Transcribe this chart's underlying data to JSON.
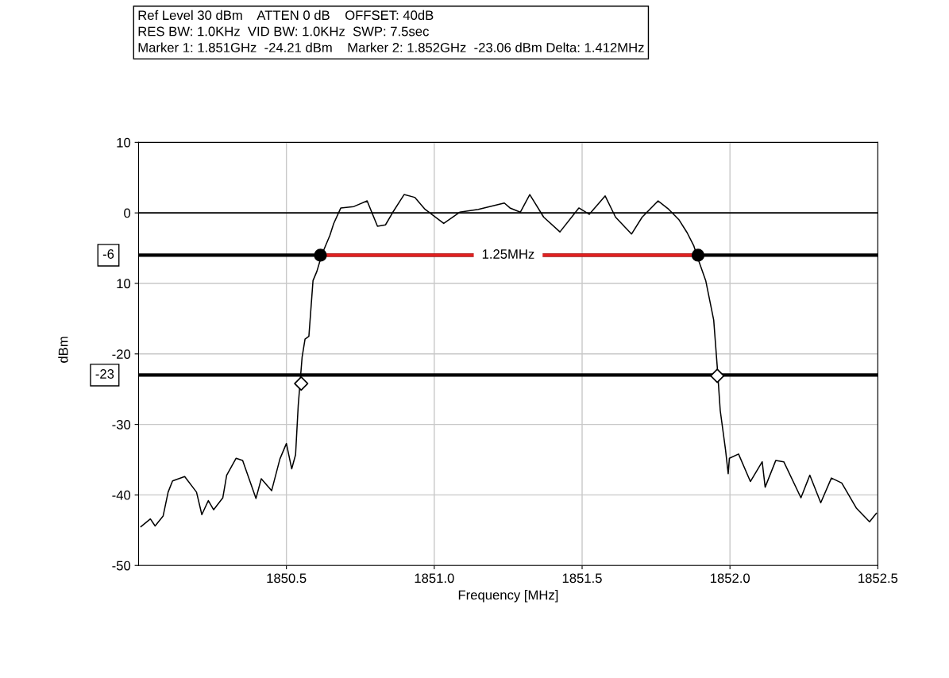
{
  "chart_data": {
    "type": "line",
    "title": "Ref Level 30 dBm    ATTEN 0 dB    OFFSET: 40dB\nRES BW: 1.0KHz  VID BW: 1.0KHz  SWP: 7.5sec\nMarker 1: 1.851GHz  -24.21 dBm    Marker 2: 1.852GHz  -23.06 dBm Delta: 1.412MHz",
    "xlabel": "Frequency [MHz]",
    "ylabel": "dBm",
    "xlim": [
      1850.0,
      1852.5
    ],
    "ylim": [
      -50,
      10
    ],
    "xticks": [
      {
        "value": 1850.5,
        "label": "1850.5"
      },
      {
        "value": 1851.0,
        "label": "1851.0"
      },
      {
        "value": 1851.5,
        "label": "1851.5"
      },
      {
        "value": 1852.0,
        "label": "1852.0"
      },
      {
        "value": 1852.5,
        "label": "1852.5"
      }
    ],
    "yticks": [
      10,
      0,
      {
        "value": -10,
        "label": "10"
      },
      -20,
      -30,
      -40,
      -50
    ],
    "grid": true,
    "legend": false,
    "ref_lines": [
      {
        "axis": "y",
        "value": 0,
        "color": "#000000"
      },
      {
        "axis": "y",
        "value": -6,
        "label": "-6",
        "color": "#000000"
      },
      {
        "axis": "y",
        "value": -23,
        "label": "-23",
        "color": "#000000"
      }
    ],
    "annotations": [
      {
        "text": "1.25MHz",
        "x": 1851.25,
        "y": -6
      }
    ],
    "series": [
      {
        "color": "#000000",
        "marker": "none",
        "x": [
          1850.008,
          1850.04,
          1850.056,
          1850.083,
          1850.1,
          1850.115,
          1850.156,
          1850.196,
          1850.214,
          1850.236,
          1850.254,
          1850.285,
          1850.298,
          1850.33,
          1850.352,
          1850.397,
          1850.415,
          1850.45,
          1850.478,
          1850.5,
          1850.518,
          1850.531,
          1850.54,
          1850.553,
          1850.563,
          1850.576,
          1850.59,
          1850.603,
          1850.62,
          1850.647,
          1850.66,
          1850.684,
          1850.728,
          1850.773,
          1850.808,
          1850.835,
          1850.86,
          1850.898,
          1850.934,
          1850.969,
          1851.032,
          1851.086,
          1851.149,
          1851.237,
          1851.256,
          1851.291,
          1851.323,
          1851.37,
          1851.425,
          1851.489,
          1851.524,
          1851.578,
          1851.613,
          1851.667,
          1851.703,
          1851.757,
          1851.793,
          1851.828,
          1851.855,
          1851.878,
          1851.891,
          1851.918,
          1851.945,
          1851.958,
          1851.967,
          1851.985,
          1851.994,
          1851.998,
          1852.029,
          1852.069,
          1852.109,
          1852.119,
          1852.155,
          1852.182,
          1852.24,
          1852.27,
          1852.307,
          1852.343,
          1852.378,
          1852.428,
          1852.472,
          1852.495
        ],
        "values": [
          -44.5,
          -43.4,
          -44.4,
          -43.0,
          -39.6,
          -38.0,
          -37.4,
          -39.6,
          -42.8,
          -40.8,
          -42.1,
          -40.4,
          -37.2,
          -34.8,
          -35.1,
          -40.5,
          -37.7,
          -39.4,
          -34.9,
          -32.7,
          -36.3,
          -34.3,
          -27.3,
          -20.5,
          -17.9,
          -17.5,
          -9.6,
          -8.3,
          -5.9,
          -3.2,
          -1.5,
          0.7,
          0.9,
          1.7,
          -1.9,
          -1.7,
          0.1,
          2.6,
          2.2,
          0.5,
          -1.5,
          0.1,
          0.5,
          1.4,
          0.7,
          0.1,
          2.6,
          -0.6,
          -2.7,
          0.7,
          -0.2,
          2.4,
          -0.6,
          -3.0,
          -0.6,
          1.7,
          0.5,
          -1.0,
          -2.8,
          -4.7,
          -6.4,
          -9.6,
          -15.2,
          -22.4,
          -28.0,
          -33.6,
          -37.0,
          -34.8,
          -34.2,
          -38.1,
          -35.3,
          -38.9,
          -35.1,
          -35.3,
          -40.4,
          -37.2,
          -41.1,
          -37.6,
          -38.3,
          -41.9,
          -43.8,
          -42.6
        ]
      },
      {
        "type": "line",
        "color": "#e02020",
        "marker": "none",
        "x": [
          1850.615,
          1851.892
        ],
        "values": [
          -6,
          -6
        ]
      },
      {
        "type": "scatter",
        "color": "#000000",
        "marker": "circle",
        "x": [
          1850.615,
          1851.892
        ],
        "values": [
          -6,
          -6
        ]
      },
      {
        "type": "scatter",
        "color": "#000000",
        "marker": "diamond",
        "x": [
          1850.55,
          1851.957
        ],
        "values": [
          -24.2,
          -23.1
        ]
      }
    ]
  }
}
